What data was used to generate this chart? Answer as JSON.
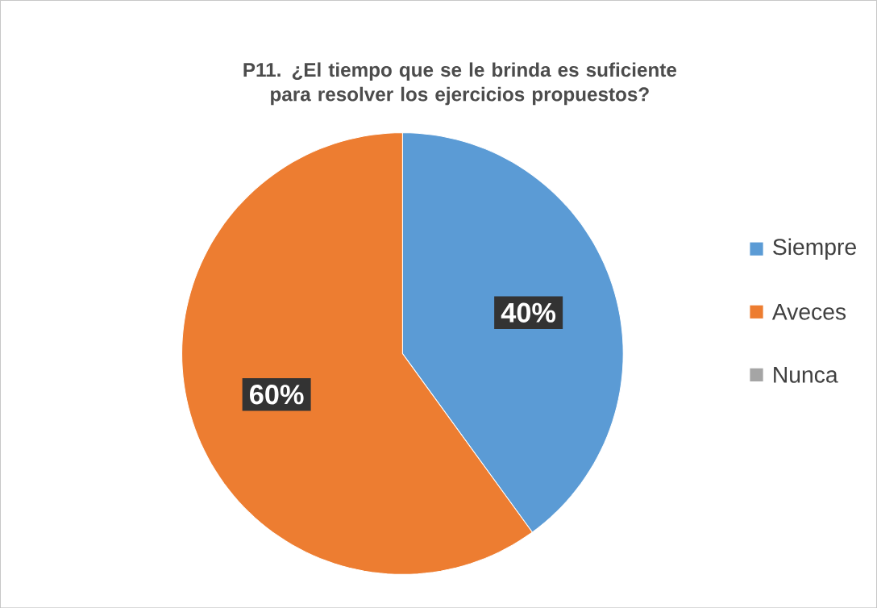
{
  "chart_data": {
    "type": "pie",
    "title": "P11. ¿El tiempo que se le brinda es suficiente para resolver los ejercicios propuestos?",
    "categories": [
      "Siempre",
      "Aveces",
      "Nunca"
    ],
    "values": [
      40,
      60,
      0
    ],
    "colors": [
      "#5b9bd5",
      "#ed7d31",
      "#a5a5a5"
    ],
    "value_labels": [
      "40%",
      "60%",
      null
    ],
    "legend": "right"
  }
}
